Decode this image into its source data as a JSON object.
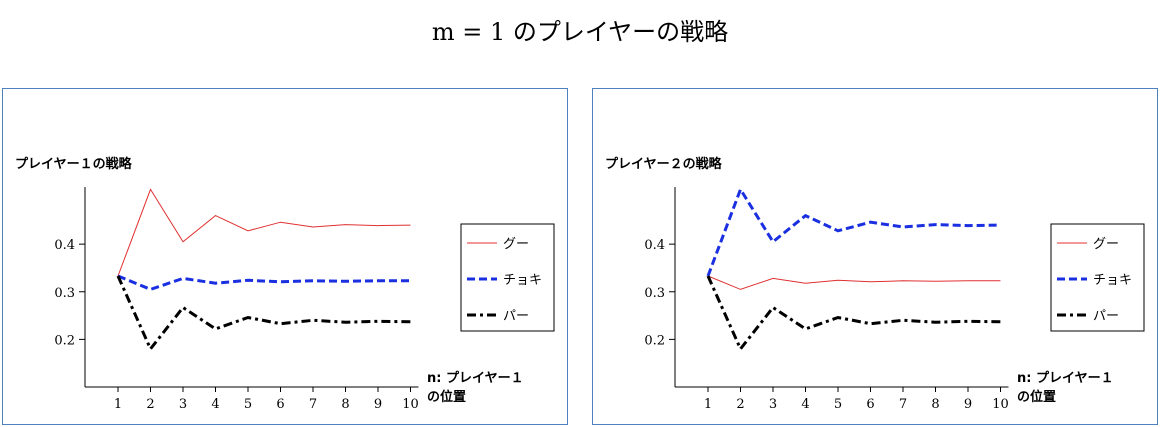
{
  "title": "m = 1 のプレイヤーの戦略",
  "colors": {
    "gu": "#e03030",
    "choki": "#1a2fe0",
    "pa": "#000000",
    "frame": "#4f81bd"
  },
  "chart_data": [
    {
      "type": "line",
      "title": "プレイヤー１の戦略",
      "xlabel": [
        "n: プレイヤー１",
        "の位置"
      ],
      "ylabel": "",
      "x": [
        1,
        2,
        3,
        4,
        5,
        6,
        7,
        8,
        9,
        10
      ],
      "ylim": [
        0.1,
        0.52
      ],
      "yticks": [
        0.2,
        0.3,
        0.4
      ],
      "legend_position": "right",
      "series": [
        {
          "name": "グー",
          "style": "solid",
          "color": "#e03030",
          "values": [
            0.333,
            0.515,
            0.405,
            0.46,
            0.428,
            0.446,
            0.436,
            0.441,
            0.439,
            0.44
          ]
        },
        {
          "name": "チョキ",
          "style": "dashed",
          "color": "#1a2fe0",
          "values": [
            0.333,
            0.305,
            0.328,
            0.318,
            0.324,
            0.321,
            0.323,
            0.322,
            0.323,
            0.323
          ]
        },
        {
          "name": "パー",
          "style": "dashdot",
          "color": "#000000",
          "values": [
            0.333,
            0.18,
            0.267,
            0.222,
            0.246,
            0.233,
            0.24,
            0.236,
            0.238,
            0.237
          ]
        }
      ]
    },
    {
      "type": "line",
      "title": "プレイヤー２の戦略",
      "xlabel": [
        "n: プレイヤー１",
        "の位置"
      ],
      "ylabel": "",
      "x": [
        1,
        2,
        3,
        4,
        5,
        6,
        7,
        8,
        9,
        10
      ],
      "ylim": [
        0.1,
        0.52
      ],
      "yticks": [
        0.2,
        0.3,
        0.4
      ],
      "legend_position": "right",
      "series": [
        {
          "name": "グー",
          "style": "solid",
          "color": "#e03030",
          "values": [
            0.333,
            0.305,
            0.328,
            0.318,
            0.324,
            0.321,
            0.323,
            0.322,
            0.323,
            0.323
          ]
        },
        {
          "name": "チョキ",
          "style": "dashed",
          "color": "#1a2fe0",
          "values": [
            0.333,
            0.515,
            0.405,
            0.46,
            0.428,
            0.446,
            0.436,
            0.441,
            0.439,
            0.44
          ]
        },
        {
          "name": "パー",
          "style": "dashdot",
          "color": "#000000",
          "values": [
            0.333,
            0.18,
            0.267,
            0.222,
            0.246,
            0.233,
            0.24,
            0.236,
            0.238,
            0.237
          ]
        }
      ]
    }
  ]
}
